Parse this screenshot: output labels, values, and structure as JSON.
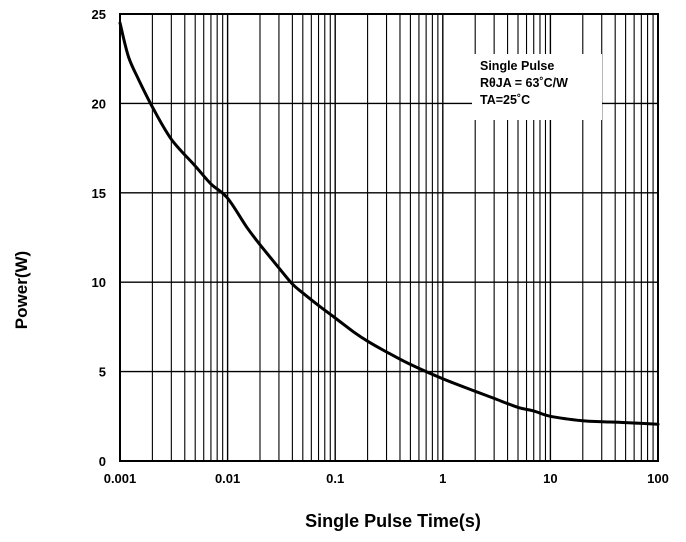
{
  "chart_data": {
    "type": "line",
    "title": "",
    "xlabel": "Single Pulse Time(s)",
    "ylabel": "Power(W)",
    "x_scale": "log",
    "xlim": [
      0.001,
      100
    ],
    "ylim": [
      0,
      25
    ],
    "x_ticks": [
      "0.001",
      "0.01",
      "0.1",
      "1",
      "10",
      "100"
    ],
    "y_ticks": [
      "0",
      "5",
      "10",
      "15",
      "20",
      "25"
    ],
    "grid": true,
    "annotation_lines": [
      "Single Pulse",
      "RθJA = 63˚C/W",
      "TA=25˚C"
    ],
    "series": [
      {
        "x": [
          0.001,
          0.0012,
          0.0015,
          0.002,
          0.003,
          0.005,
          0.007,
          0.01,
          0.015,
          0.02,
          0.03,
          0.04,
          0.05,
          0.07,
          0.1,
          0.15,
          0.2,
          0.3,
          0.5,
          1,
          2,
          3,
          5,
          7,
          10,
          20,
          30,
          50,
          100
        ],
        "y": [
          24.5,
          22.6,
          21.3,
          19.8,
          18.0,
          16.5,
          15.5,
          14.7,
          13.1,
          12.1,
          10.8,
          9.9,
          9.4,
          8.7,
          8.0,
          7.2,
          6.7,
          6.1,
          5.4,
          4.6,
          3.9,
          3.5,
          3.0,
          2.8,
          2.5,
          2.25,
          2.2,
          2.15,
          2.05
        ]
      }
    ]
  }
}
